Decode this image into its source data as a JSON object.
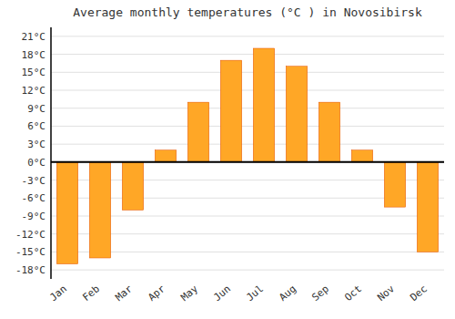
{
  "chart_data": {
    "type": "bar",
    "title": "Average monthly temperatures (°C ) in Novosibirsk",
    "categories": [
      "Jan",
      "Feb",
      "Mar",
      "Apr",
      "May",
      "Jun",
      "Jul",
      "Aug",
      "Sep",
      "Oct",
      "Nov",
      "Dec"
    ],
    "values": [
      -17,
      -16,
      -8,
      2,
      10,
      17,
      19,
      16,
      10,
      2,
      -7.5,
      -15
    ],
    "color": "#FFA726",
    "ylim": [
      -19.5,
      22.5
    ],
    "yticks": [
      {
        "value": -18,
        "label": "-18°C"
      },
      {
        "value": -15,
        "label": "-15°C"
      },
      {
        "value": -12,
        "label": "-12°C"
      },
      {
        "value": -9,
        "label": "-9°C"
      },
      {
        "value": -6,
        "label": "-6°C"
      },
      {
        "value": -3,
        "label": "-3°C"
      },
      {
        "value": 0,
        "label": "0°C"
      },
      {
        "value": 3,
        "label": "3°C"
      },
      {
        "value": 6,
        "label": "6°C"
      },
      {
        "value": 9,
        "label": "9°C"
      },
      {
        "value": 12,
        "label": "12°C"
      },
      {
        "value": 15,
        "label": "15°C"
      },
      {
        "value": 18,
        "label": "18°C"
      },
      {
        "value": 21,
        "label": "21°C"
      }
    ],
    "grid": true
  }
}
